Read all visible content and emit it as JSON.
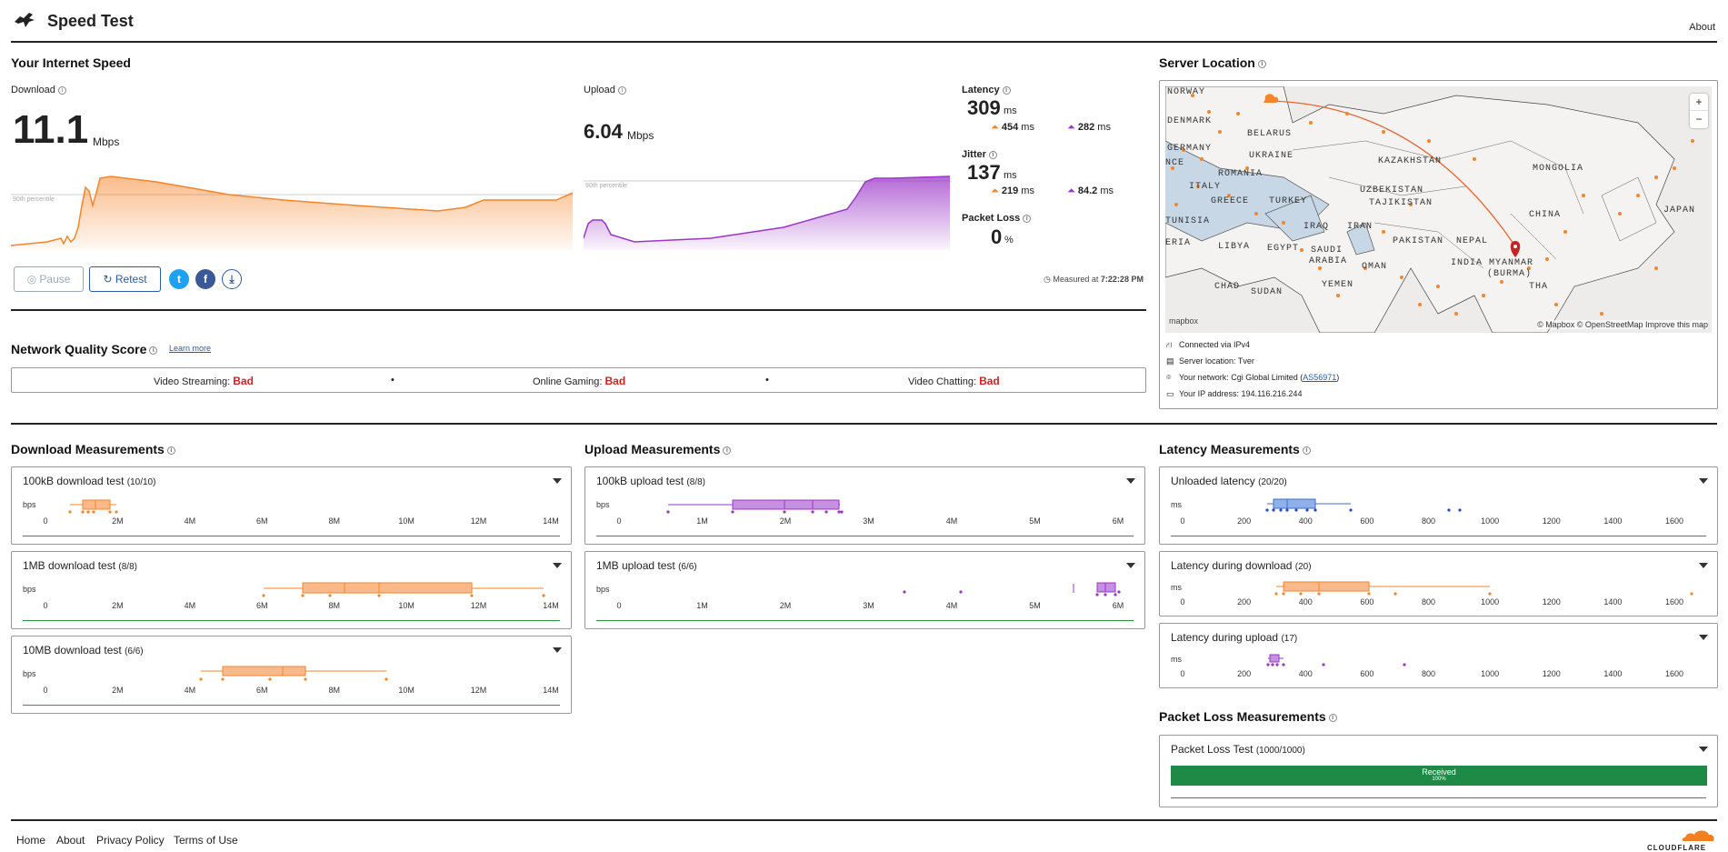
{
  "header": {
    "title": "Speed Test",
    "about": "About"
  },
  "speed": {
    "section_title": "Your Internet Speed",
    "download": {
      "label": "Download",
      "value": "11.1",
      "unit": "Mbps",
      "percentile": "90th percentile"
    },
    "upload": {
      "label": "Upload",
      "value": "6.04",
      "unit": "Mbps",
      "percentile": "90th percentile"
    },
    "latency": {
      "label": "Latency",
      "value": "309",
      "unit": "ms",
      "down": "454",
      "down_unit": "ms",
      "up": "282",
      "up_unit": "ms"
    },
    "jitter": {
      "label": "Jitter",
      "value": "137",
      "unit": "ms",
      "down": "219",
      "down_unit": "ms",
      "up": "84.2",
      "up_unit": "ms"
    },
    "packet_loss": {
      "label": "Packet Loss",
      "value": "0",
      "unit": "%"
    },
    "pause_label": "Pause",
    "retest_label": "Retest",
    "measured_prefix": "Measured at",
    "measured_time": "7:22:28 PM",
    "colors": {
      "download": "#f6852a",
      "upload": "#9b36c8"
    }
  },
  "server": {
    "section_title": "Server Location",
    "map_labels": [
      "NORWAY",
      "DENMARK",
      "BELARUS",
      "GERMANY",
      "UKRAINE",
      "NCE",
      "ROMANIA",
      "KAZAKHSTAN",
      "MONGOLIA",
      "ITALY",
      "GREECE",
      "TURKEY",
      "UZBEKISTAN",
      "TAJIKISTAN",
      "TUNISIA",
      "IRAQ",
      "IRAN",
      "CHINA",
      "JAPAN",
      "ERIA",
      "LIBYA",
      "EGYPT",
      "SAUDI",
      "ARABIA",
      "PAKISTAN",
      "NEPAL",
      "INDIA",
      "OMAN",
      "MYANMAR",
      "(BURMA)",
      "CHAD",
      "SUDAN",
      "YEMEN",
      "THA"
    ],
    "map_attrib": "© Mapbox © OpenStreetMap  Improve this map",
    "mapbox_logo": "mapbox",
    "zoom_in": "+",
    "zoom_out": "−",
    "connected": "Connected via IPv4",
    "location": "Server location: Tver",
    "network_prefix": "Your network: Cgi Global Limited (",
    "network_as": "AS56971",
    "network_suffix": ")",
    "ip": "Your IP address: 194.116.216.244"
  },
  "nqs": {
    "title": "Network Quality Score",
    "learn_more": "Learn more",
    "items": [
      {
        "label": "Video Streaming:",
        "value": "Bad"
      },
      {
        "label": "Online Gaming:",
        "value": "Bad"
      },
      {
        "label": "Video Chatting:",
        "value": "Bad"
      }
    ]
  },
  "download_meas": {
    "title": "Download Measurements",
    "tests": [
      {
        "name": "100kB download test",
        "count": "(10/10)"
      },
      {
        "name": "1MB download test",
        "count": "(8/8)"
      },
      {
        "name": "10MB download test",
        "count": "(6/6)"
      }
    ],
    "unit": "bps",
    "ticks": [
      "0",
      "2M",
      "4M",
      "6M",
      "8M",
      "10M",
      "12M",
      "14M"
    ]
  },
  "upload_meas": {
    "title": "Upload Measurements",
    "tests": [
      {
        "name": "100kB upload test",
        "count": "(8/8)"
      },
      {
        "name": "1MB upload test",
        "count": "(6/6)"
      }
    ],
    "unit": "bps",
    "ticks": [
      "0",
      "1M",
      "2M",
      "3M",
      "4M",
      "5M",
      "6M"
    ]
  },
  "latency_meas": {
    "title": "Latency Measurements",
    "tests": [
      {
        "name": "Unloaded latency",
        "count": "(20/20)"
      },
      {
        "name": "Latency during download",
        "count": "(20)"
      },
      {
        "name": "Latency during upload",
        "count": "(17)"
      }
    ],
    "unit": "ms",
    "ticks": [
      "0",
      "200",
      "400",
      "600",
      "800",
      "1000",
      "1200",
      "1400",
      "1600"
    ]
  },
  "packet_loss_meas": {
    "title": "Packet Loss Measurements",
    "test": {
      "name": "Packet Loss Test",
      "count": "(1000/1000)"
    },
    "bar_label": "Received",
    "bar_pct": "100%",
    "received_fraction": 1.0
  },
  "footer": {
    "links": [
      "Home",
      "About",
      "Privacy Policy",
      "Terms of Use"
    ],
    "brand": "CLOUDFLARE"
  }
}
